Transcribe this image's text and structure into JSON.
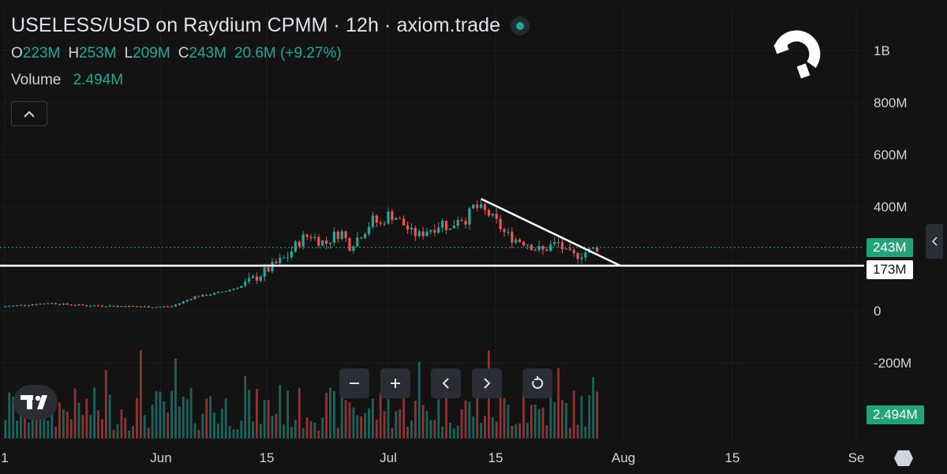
{
  "header": {
    "title": "USELESS/USD on Raydium CPMM · 12h · axiom.trade",
    "ohlc": [
      {
        "k": "O",
        "v": "223M"
      },
      {
        "k": "H",
        "v": "253M"
      },
      {
        "k": "L",
        "v": "209M"
      },
      {
        "k": "C",
        "v": "243M"
      }
    ],
    "change": "20.6M (+9.27%)",
    "volume_label": "Volume",
    "volume_value": "2.494M"
  },
  "price_tags": {
    "last": "243M",
    "line": "173M",
    "volume": "2.494M"
  },
  "colors": {
    "background": "#131313",
    "up": "#26a69a",
    "down": "#ef5350",
    "tag_green": "#22a37a",
    "line": "#ffffff"
  },
  "icons": [
    "magnet-icon",
    "tradingview-logo-icon",
    "chevron-up-icon",
    "minus-icon",
    "plus-icon",
    "chevron-left-icon",
    "chevron-right-icon",
    "reset-icon",
    "hexagon-icon"
  ],
  "chart_data": {
    "type": "candlestick",
    "title": "USELESS/USD on Raydium CPMM · 12h · axiom.trade",
    "y_ticks": [
      "1B",
      "800M",
      "600M",
      "400M",
      "0",
      "-200M"
    ],
    "y_ticks_values": [
      1000,
      800,
      600,
      400,
      0,
      -200
    ],
    "x_ticks": [
      "1",
      "Jun",
      "15",
      "Jul",
      "15",
      "Aug",
      "15",
      "Se"
    ],
    "ylim": [
      -290,
      1200
    ],
    "unit": "M",
    "price_path": [
      [
        0,
        16
      ],
      [
        6,
        22
      ],
      [
        12,
        30
      ],
      [
        16,
        25
      ],
      [
        22,
        20
      ],
      [
        30,
        18
      ],
      [
        36,
        16
      ],
      [
        40,
        14
      ],
      [
        44,
        17
      ],
      [
        47,
        35
      ],
      [
        50,
        55
      ],
      [
        53,
        60
      ],
      [
        56,
        70
      ],
      [
        59,
        80
      ],
      [
        62,
        95
      ],
      [
        64,
        110
      ],
      [
        66,
        130
      ],
      [
        68,
        150
      ],
      [
        70,
        170
      ],
      [
        72,
        190
      ],
      [
        74,
        210
      ],
      [
        76,
        250
      ],
      [
        78,
        280
      ],
      [
        80,
        290
      ],
      [
        82,
        270
      ],
      [
        84,
        260
      ],
      [
        86,
        290
      ],
      [
        88,
        300
      ],
      [
        90,
        250
      ],
      [
        92,
        280
      ],
      [
        94,
        310
      ],
      [
        96,
        350
      ],
      [
        98,
        330
      ],
      [
        100,
        370
      ],
      [
        102,
        360
      ],
      [
        104,
        330
      ],
      [
        106,
        300
      ],
      [
        108,
        290
      ],
      [
        110,
        310
      ],
      [
        112,
        320
      ],
      [
        114,
        340
      ],
      [
        116,
        310
      ],
      [
        118,
        360
      ],
      [
        120,
        350
      ],
      [
        122,
        400
      ],
      [
        124,
        390
      ],
      [
        126,
        370
      ],
      [
        128,
        340
      ],
      [
        130,
        300
      ],
      [
        132,
        280
      ],
      [
        134,
        270
      ],
      [
        136,
        260
      ],
      [
        138,
        240
      ],
      [
        140,
        230
      ],
      [
        142,
        250
      ],
      [
        144,
        260
      ],
      [
        146,
        220
      ],
      [
        148,
        210
      ],
      [
        150,
        220
      ],
      [
        152,
        230
      ],
      [
        154,
        243
      ]
    ],
    "horizontal_line": 173,
    "trendline": {
      "from": [
        124,
        430
      ],
      "to": [
        160,
        173
      ]
    },
    "volume_heights": [
      0.15,
      0.3,
      0.2,
      0.1,
      0.35,
      0.55,
      0.25,
      0.6,
      0.35,
      0.2,
      0.8,
      0.3,
      0.5,
      0.2,
      0.15,
      0.25,
      0.1,
      0.12
    ]
  }
}
